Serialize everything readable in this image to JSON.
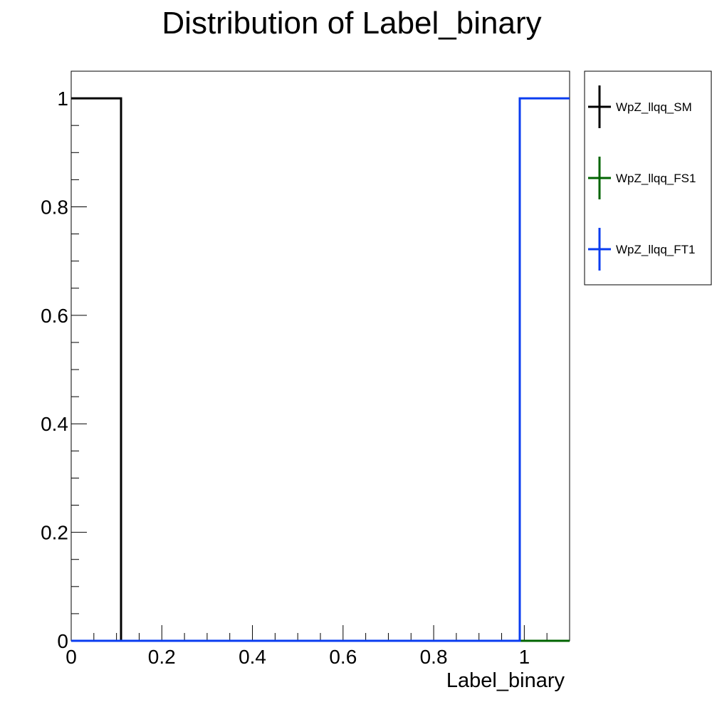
{
  "chart_data": {
    "type": "line",
    "title": "Distribution of Label_binary",
    "xlabel": "Label_binary",
    "ylabel": "",
    "xlim": [
      0,
      1.1
    ],
    "ylim": [
      0,
      1.05
    ],
    "xticks": [
      0,
      0.2,
      0.4,
      0.6,
      0.8,
      1
    ],
    "yticks": [
      0,
      0.2,
      0.4,
      0.6,
      0.8,
      1
    ],
    "grid": false,
    "legend_position": "right",
    "series": [
      {
        "name": "WpZ_llqq_SM",
        "color": "#000000",
        "bin_edges": [
          0,
          0.11,
          0.99,
          1.1
        ],
        "values": [
          1,
          0,
          0
        ]
      },
      {
        "name": "WpZ_llqq_FS1",
        "color": "#006400",
        "bin_edges": [
          0,
          0.11,
          0.99,
          1.1
        ],
        "values": [
          0,
          0,
          0
        ]
      },
      {
        "name": "WpZ_llqq_FT1",
        "color": "#0a3cf0",
        "bin_edges": [
          0,
          0.11,
          0.99,
          1.1
        ],
        "values": [
          0,
          0,
          1
        ]
      }
    ]
  }
}
